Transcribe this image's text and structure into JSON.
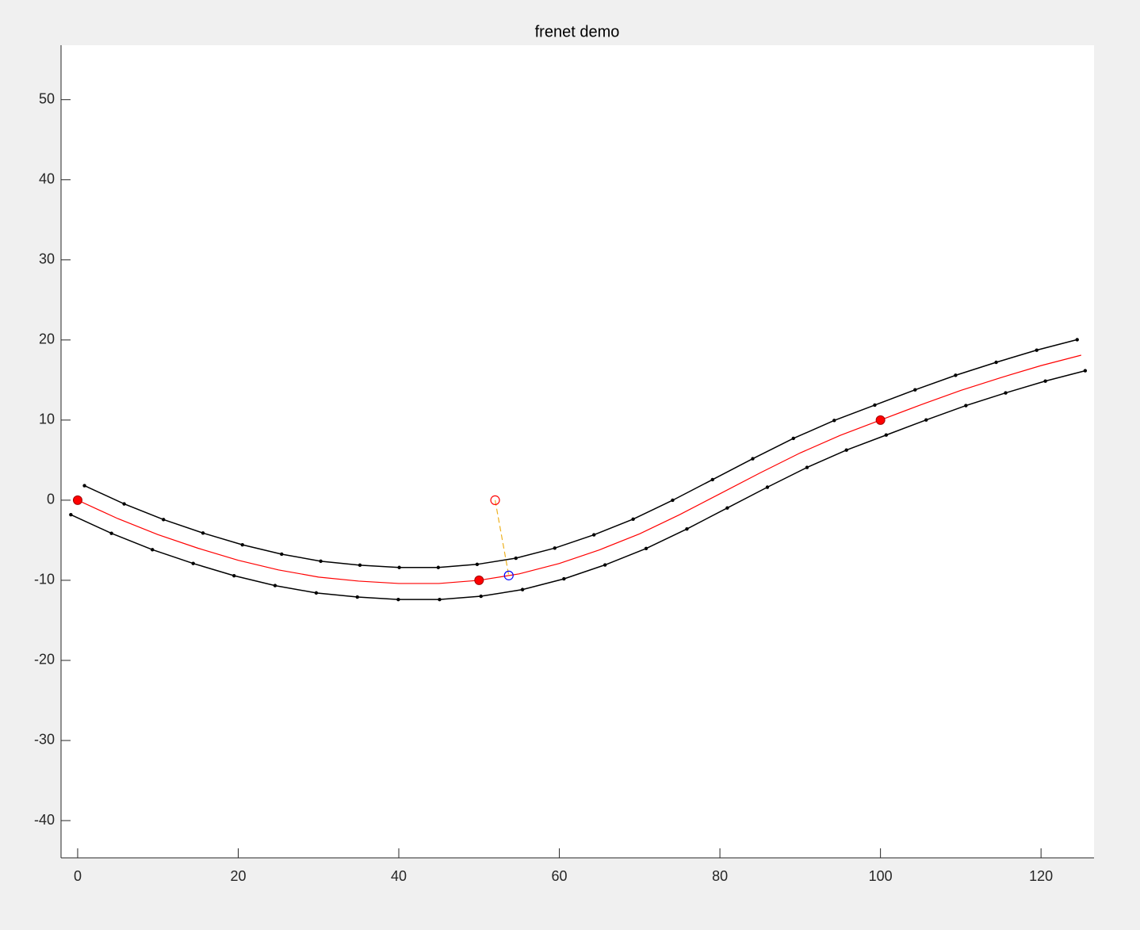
{
  "chart_data": {
    "type": "line",
    "title": "frenet demo",
    "xlim": [
      -2.07,
      126.6
    ],
    "ylim": [
      -44.65,
      56.8
    ],
    "xticks": [
      0,
      20,
      40,
      60,
      80,
      100,
      120
    ],
    "yticks": [
      -40,
      -30,
      -20,
      -10,
      0,
      10,
      20,
      30,
      40,
      50
    ],
    "series": [
      {
        "color": "#ff0000",
        "line": "solid",
        "marker": "none",
        "x": [
          0,
          5,
          10,
          15,
          20,
          25,
          30,
          35,
          40,
          45,
          50,
          55,
          60,
          65,
          70,
          75,
          80,
          85,
          90,
          95,
          100,
          105,
          110,
          115,
          120,
          125
        ],
        "values": [
          0,
          -2.3,
          -4.3,
          -6.0,
          -7.5,
          -8.7,
          -9.6,
          -10.1,
          -10.4,
          -10.4,
          -10.0,
          -9.2,
          -7.9,
          -6.2,
          -4.2,
          -1.8,
          0.8,
          3.4,
          5.9,
          8.1,
          10.0,
          11.9,
          13.7,
          15.3,
          16.8,
          18.1
        ]
      },
      {
        "color": "#000000",
        "line": "solid",
        "marker": "dot",
        "x": [
          0.85,
          5.79,
          10.69,
          15.61,
          20.52,
          25.41,
          30.28,
          35.16,
          40.06,
          44.92,
          49.76,
          54.59,
          59.43,
          64.31,
          69.19,
          74.11,
          79.08,
          84.09,
          89.15,
          94.24,
          99.29,
          104.31,
          109.36,
          114.41,
          119.46,
          124.5
        ],
        "values": [
          1.81,
          -0.46,
          -2.42,
          -4.1,
          -5.57,
          -6.74,
          -7.62,
          -8.11,
          -8.4,
          -8.4,
          -8.01,
          -7.24,
          -5.98,
          -4.32,
          -2.37,
          -0.01,
          2.57,
          5.18,
          7.71,
          9.95,
          11.87,
          13.78,
          15.59,
          17.21,
          18.73,
          20.04
        ]
      },
      {
        "color": "#000000",
        "line": "solid",
        "marker": "dot",
        "x": [
          -0.85,
          4.21,
          9.31,
          14.39,
          19.48,
          24.59,
          29.72,
          34.84,
          39.94,
          45.08,
          50.24,
          55.41,
          60.57,
          65.69,
          70.81,
          75.89,
          80.92,
          85.91,
          90.85,
          95.76,
          100.71,
          105.69,
          110.64,
          115.59,
          120.54,
          125.5
        ],
        "values": [
          -1.81,
          -4.14,
          -6.18,
          -7.9,
          -9.43,
          -10.66,
          -11.58,
          -12.09,
          -12.4,
          -12.4,
          -11.99,
          -11.16,
          -9.82,
          -8.08,
          -6.03,
          -3.59,
          -0.97,
          1.62,
          4.09,
          6.25,
          8.13,
          10.02,
          11.81,
          13.39,
          14.87,
          16.16
        ]
      },
      {
        "color": "#ff0000",
        "line": "none",
        "marker": "filled-circle",
        "x": [
          0,
          50,
          100
        ],
        "values": [
          0,
          -10,
          10
        ]
      },
      {
        "color": "#edb120",
        "line": "dashed",
        "marker": "none",
        "x": [
          52,
          53.7
        ],
        "values": [
          0,
          -9.4
        ]
      },
      {
        "color": "#ff0000",
        "line": "none",
        "marker": "open-circle",
        "x": [
          52
        ],
        "values": [
          0
        ]
      },
      {
        "color": "#0000ff",
        "line": "none",
        "marker": "open-circle",
        "x": [
          53.7
        ],
        "values": [
          -9.4
        ]
      }
    ]
  }
}
